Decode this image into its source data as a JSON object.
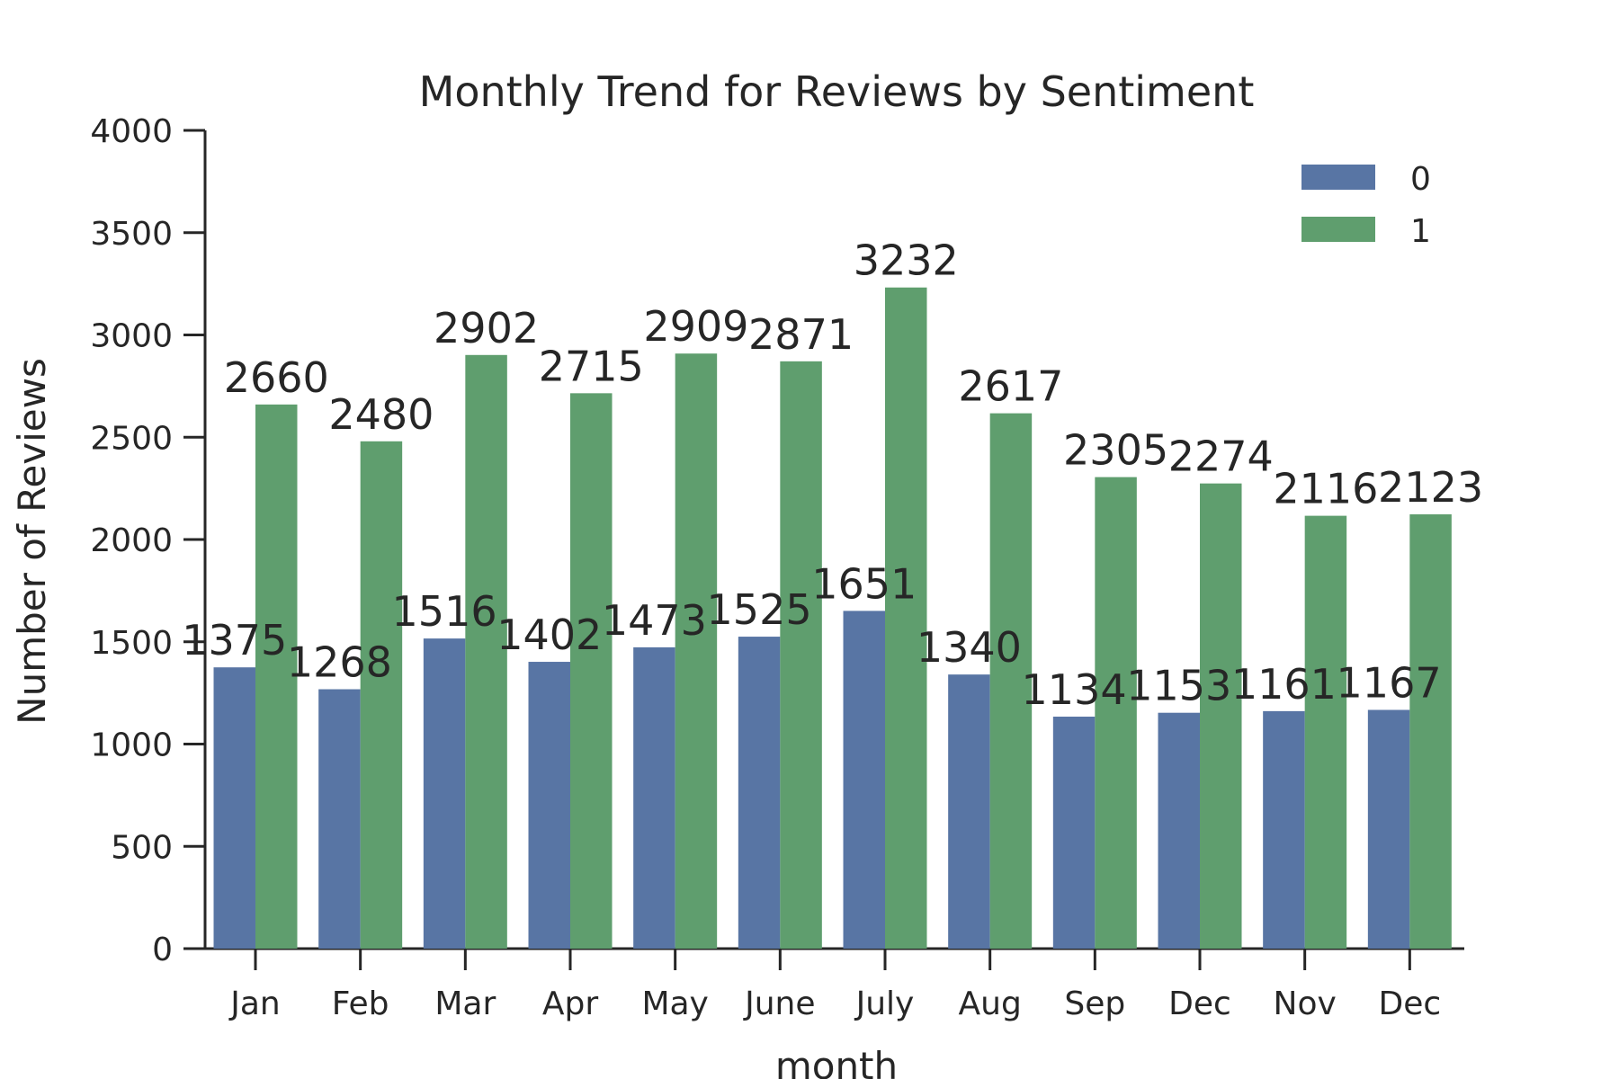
{
  "chart_data": {
    "type": "bar",
    "title": "Monthly Trend for Reviews by Sentiment",
    "xlabel": "month",
    "ylabel": "Number of Reviews",
    "ylim": [
      0,
      4000
    ],
    "yticks": [
      0,
      500,
      1000,
      1500,
      2000,
      2500,
      3000,
      3500,
      4000
    ],
    "categories": [
      "Jan",
      "Feb",
      "Mar",
      "Apr",
      "May",
      "June",
      "July",
      "Aug",
      "Sep",
      "Dec",
      "Nov",
      "Dec"
    ],
    "series": [
      {
        "name": "0",
        "color": "#5875a4",
        "values": [
          1375,
          1268,
          1516,
          1402,
          1473,
          1525,
          1651,
          1340,
          1134,
          1153,
          1161,
          1167
        ]
      },
      {
        "name": "1",
        "color": "#5f9e6e",
        "values": [
          2660,
          2480,
          2902,
          2715,
          2909,
          2871,
          3232,
          2617,
          2305,
          2274,
          2116,
          2123
        ]
      }
    ],
    "data_labels": true,
    "grid": false,
    "legend_position": "top-right"
  }
}
